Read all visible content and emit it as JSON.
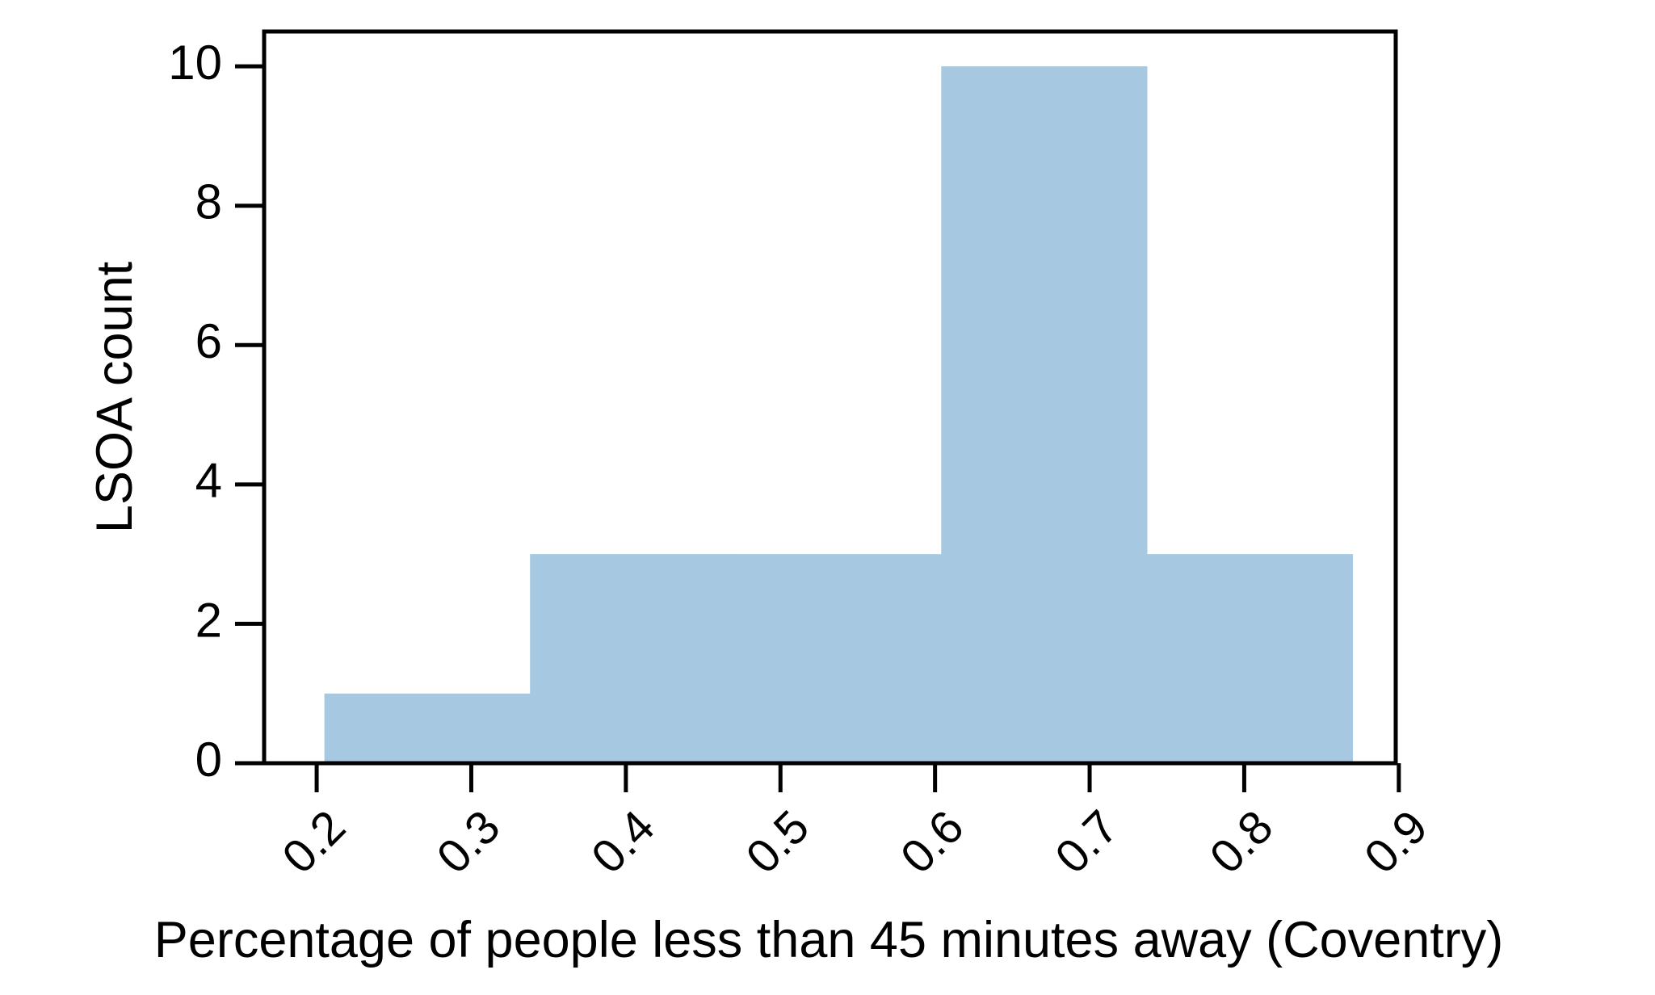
{
  "chart_data": {
    "type": "bar",
    "title": "",
    "xlabel": "Percentage of people less than 45 minutes away (Coventry)",
    "ylabel": "LSOA count",
    "xlim": [
      0.166,
      0.898
    ],
    "ylim": [
      0,
      10.5
    ],
    "grid": false,
    "bar_color": "#a6c8e0",
    "bins": [
      {
        "x0": 0.205,
        "x1": 0.338,
        "value": 1
      },
      {
        "x0": 0.338,
        "x1": 0.471,
        "value": 3
      },
      {
        "x0": 0.471,
        "x1": 0.604,
        "value": 3
      },
      {
        "x0": 0.604,
        "x1": 0.737,
        "value": 10
      },
      {
        "x0": 0.737,
        "x1": 0.87,
        "value": 3
      }
    ],
    "xticks": [
      {
        "value": 0.2,
        "label": "0.2"
      },
      {
        "value": 0.3,
        "label": "0.3"
      },
      {
        "value": 0.4,
        "label": "0.4"
      },
      {
        "value": 0.5,
        "label": "0.5"
      },
      {
        "value": 0.6,
        "label": "0.6"
      },
      {
        "value": 0.7,
        "label": "0.7"
      },
      {
        "value": 0.8,
        "label": "0.8"
      },
      {
        "value": 0.9,
        "label": "0.9"
      }
    ],
    "yticks": [
      {
        "value": 0,
        "label": "0"
      },
      {
        "value": 2,
        "label": "2"
      },
      {
        "value": 4,
        "label": "4"
      },
      {
        "value": 6,
        "label": "6"
      },
      {
        "value": 8,
        "label": "8"
      },
      {
        "value": 10,
        "label": "10"
      }
    ]
  }
}
